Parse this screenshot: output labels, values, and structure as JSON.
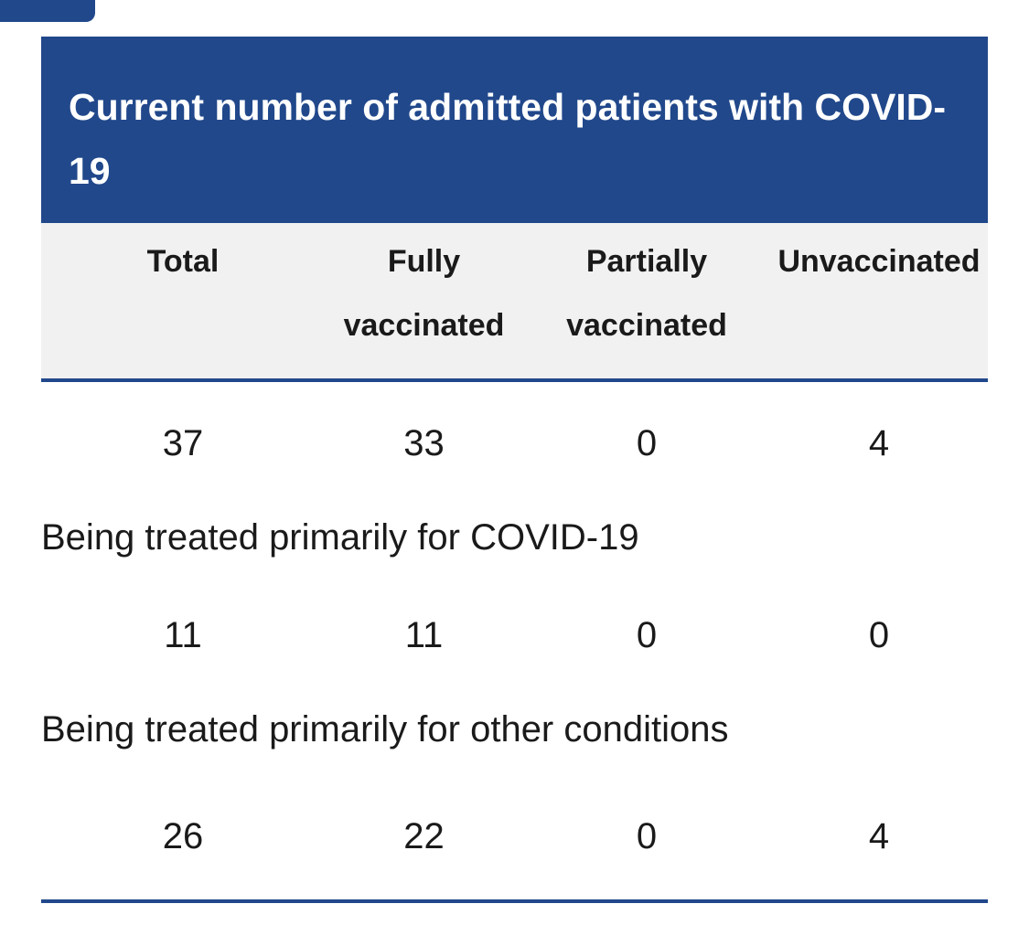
{
  "table": {
    "caption": "Current number of admitted patients with COVID-19",
    "headers": [
      "Total",
      "Fully vaccinated",
      "Partially vaccinated",
      "Unvaccinated"
    ],
    "all_patients": [
      "37",
      "33",
      "0",
      "4"
    ],
    "sections": [
      {
        "label": "Being treated primarily for COVID-19",
        "values": [
          "11",
          "11",
          "0",
          "0"
        ]
      },
      {
        "label": "Being treated primarily for other conditions",
        "values": [
          "26",
          "22",
          "0",
          "4"
        ]
      }
    ]
  },
  "colors": {
    "accent": "#21488b",
    "header_bg": "#f1f1f1"
  }
}
